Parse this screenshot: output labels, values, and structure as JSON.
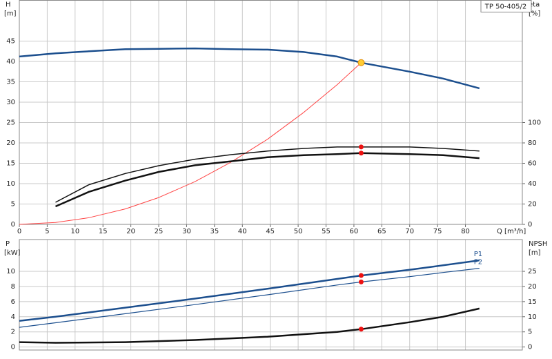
{
  "chart_data": [
    {
      "type": "line",
      "title": "TP 50-405/2",
      "ylabel": "H",
      "ylabel_unit": "[m]",
      "y2label": "eta",
      "y2label_unit": "[%]",
      "xlabel": "Q [m³/h]",
      "xlim": [
        0,
        90.2
      ],
      "xticks": [
        0,
        5,
        10,
        15,
        20,
        25,
        30,
        35,
        40,
        45,
        50,
        55,
        60,
        65,
        70,
        75,
        80
      ],
      "ylim": [
        0,
        55
      ],
      "yticks": [
        0,
        5,
        10,
        15,
        20,
        25,
        30,
        35,
        40,
        45
      ],
      "y2lim": [
        0,
        220
      ],
      "y2ticks": [
        0,
        20,
        40,
        60,
        80,
        100
      ],
      "grid": true,
      "x": [
        0,
        6.5,
        12.5,
        19,
        25,
        31.5,
        38,
        44.5,
        51,
        57,
        61.3,
        70,
        76,
        82.5
      ],
      "series": [
        {
          "color": "#1c4f8e",
          "line_width": 2.5,
          "values": [
            41.2,
            42,
            42.5,
            43,
            43.1,
            43.2,
            43,
            42.9,
            42.3,
            41.2,
            39.7,
            37.5,
            35.8,
            33.4
          ]
        },
        {
          "color": "#ff4444",
          "line_width": 1,
          "values": [
            0,
            0.45,
            1.65,
            3.8,
            6.6,
            10.5,
            15.3,
            20.9,
            27.5,
            34.3,
            39.7,
            null,
            null,
            null
          ]
        },
        {
          "color": "#111111",
          "line_width": 2.5,
          "axis": "y2",
          "values": [
            null,
            17.6,
            32,
            43,
            51.5,
            58,
            62,
            66,
            68,
            69,
            70,
            69,
            68,
            65
          ]
        },
        {
          "color": "#111111",
          "line_width": 1.5,
          "axis": "y2",
          "values": [
            null,
            21.7,
            39,
            50,
            57.6,
            64,
            68.5,
            72,
            74.6,
            76,
            76,
            76,
            74.6,
            72
          ]
        },
        {
          "type": "scatter",
          "color": "#ffcc33",
          "x": [
            61.3
          ],
          "values": [
            39.7
          ]
        },
        {
          "type": "scatter",
          "color": "#ee1111",
          "axis": "y2",
          "x": [
            61.3,
            61.3
          ],
          "values": [
            70,
            76
          ]
        }
      ]
    },
    {
      "type": "line",
      "ylabel": "P",
      "ylabel_unit": "[kW]",
      "y2label": "NPSH",
      "y2label_unit": "[m]",
      "xlim": [
        0,
        90.2
      ],
      "ylim": [
        -0.4,
        14.2
      ],
      "yticks": [
        0,
        2,
        4,
        6,
        8,
        10
      ],
      "y2lim": [
        -1,
        35.5
      ],
      "y2ticks": [
        0,
        5,
        10,
        15,
        20,
        25
      ],
      "grid": true,
      "x": [
        0,
        6.5,
        19,
        31.5,
        44.5,
        57,
        61.3,
        70,
        76,
        82.5
      ],
      "series": [
        {
          "name": "P1",
          "color": "#1c4f8e",
          "line_width": 2.5,
          "values": [
            3.45,
            4.0,
            5.2,
            6.4,
            7.7,
            9.0,
            9.45,
            10.2,
            10.8,
            11.45
          ]
        },
        {
          "name": "P2",
          "color": "#1c4f8e",
          "line_width": 1.2,
          "values": [
            2.6,
            3.2,
            4.4,
            5.6,
            6.9,
            8.2,
            8.6,
            9.3,
            9.85,
            10.4
          ]
        },
        {
          "color": "#111111",
          "line_width": 2.5,
          "axis": "y2",
          "values": [
            1.6,
            1.4,
            1.6,
            2.3,
            3.4,
            5,
            5.9,
            8.2,
            10,
            12.7
          ]
        },
        {
          "type": "scatter",
          "color": "#ee1111",
          "x": [
            61.3,
            61.3
          ],
          "values": [
            9.45,
            8.6
          ]
        },
        {
          "type": "scatter",
          "color": "#ee1111",
          "axis": "y2",
          "x": [
            61.3
          ],
          "values": [
            5.9
          ]
        }
      ]
    }
  ]
}
